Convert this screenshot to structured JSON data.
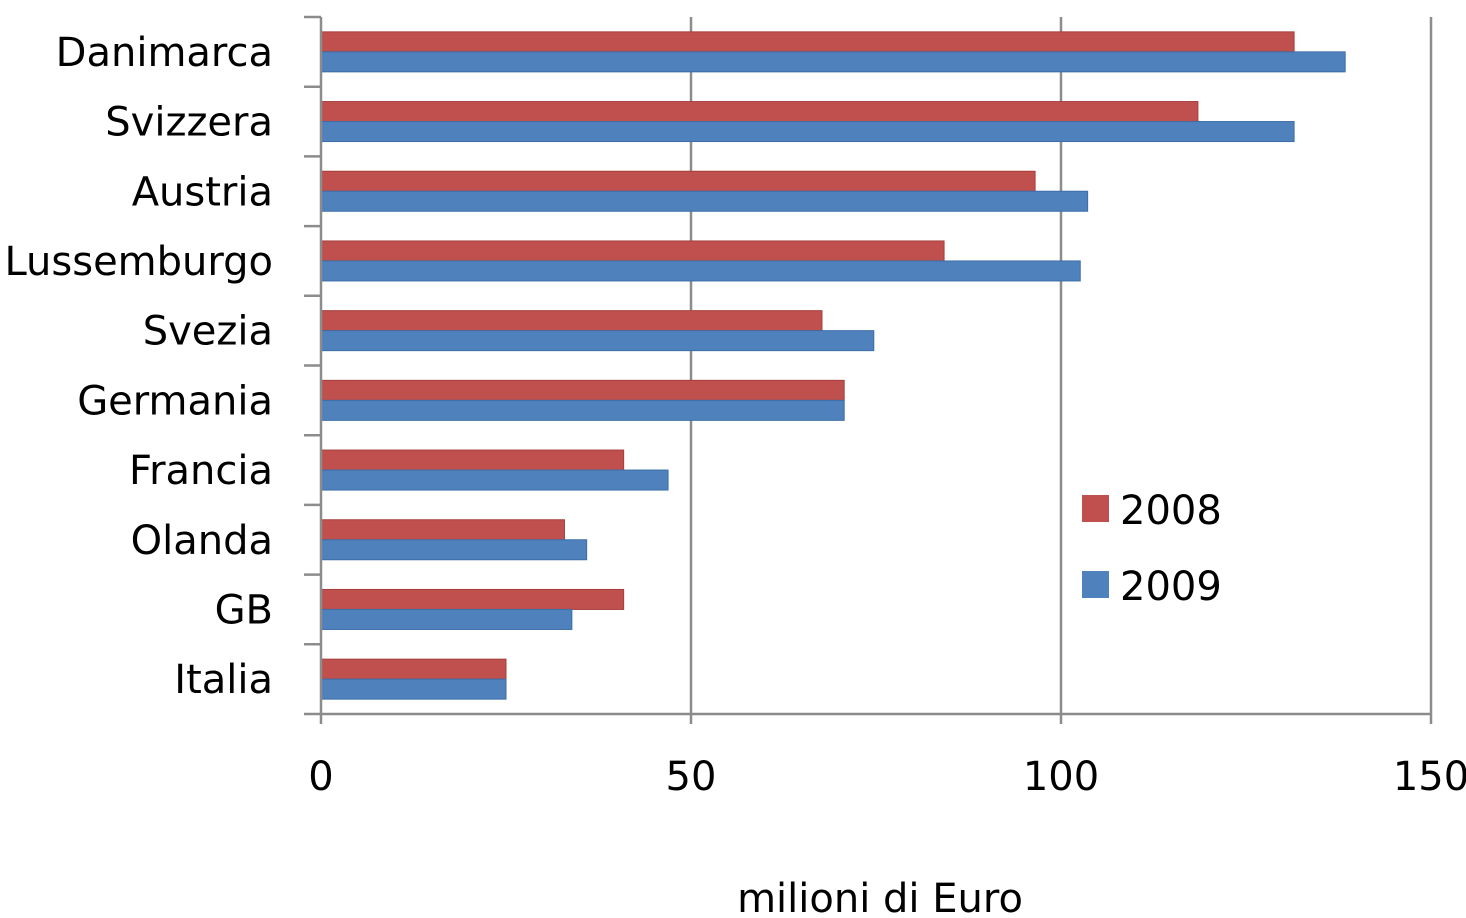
{
  "chart_data": {
    "type": "bar",
    "orientation": "horizontal",
    "categories": [
      "Danimarca",
      "Svizzera",
      "Austria",
      "Lussemburgo",
      "Svezia",
      "Germania",
      "Francia",
      "Olanda",
      "GB",
      "Italia"
    ],
    "series": [
      {
        "name": "2008",
        "color": "#c0504d",
        "values": [
          131.5,
          118.5,
          96.5,
          84.2,
          67.7,
          70.7,
          40.9,
          32.9,
          40.9,
          25.0
        ]
      },
      {
        "name": "2009",
        "color": "#4f81bd",
        "values": [
          138.4,
          131.5,
          103.6,
          102.6,
          74.7,
          70.7,
          46.9,
          35.9,
          33.9,
          25.0
        ]
      }
    ],
    "xlabel": "milioni di Euro",
    "ylabel": "",
    "xlim": [
      0,
      150
    ],
    "xticks": [
      "0",
      "50",
      "100",
      "150"
    ],
    "grid": true,
    "legend_position": "right"
  }
}
